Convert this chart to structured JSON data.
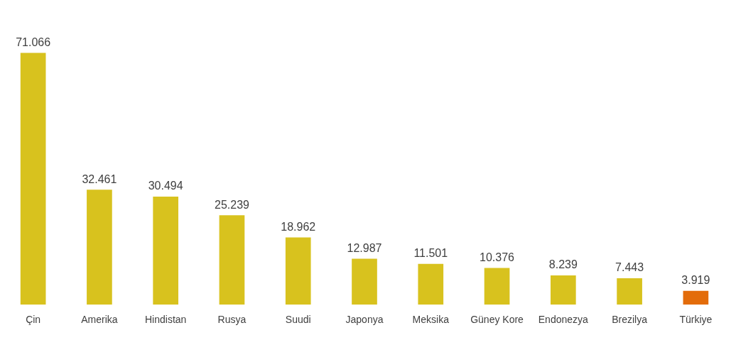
{
  "chart_data": {
    "type": "bar",
    "categories": [
      "Çin",
      "Amerika",
      "Hindistan",
      "Rusya",
      "Suudi",
      "Japonya",
      "Meksika",
      "Güney Kore",
      "Endonezya",
      "Brezilya",
      "Türkiye"
    ],
    "values": [
      71.066,
      32.461,
      30.494,
      25.239,
      18.962,
      12.987,
      11.501,
      10.376,
      8.239,
      7.443,
      3.919
    ],
    "colors": [
      "#d8c21e",
      "#d8c21e",
      "#d8c21e",
      "#d8c21e",
      "#d8c21e",
      "#d8c21e",
      "#d8c21e",
      "#d8c21e",
      "#d8c21e",
      "#d8c21e",
      "#e36c0a"
    ],
    "data_labels": true,
    "grid": false,
    "legend": false
  }
}
